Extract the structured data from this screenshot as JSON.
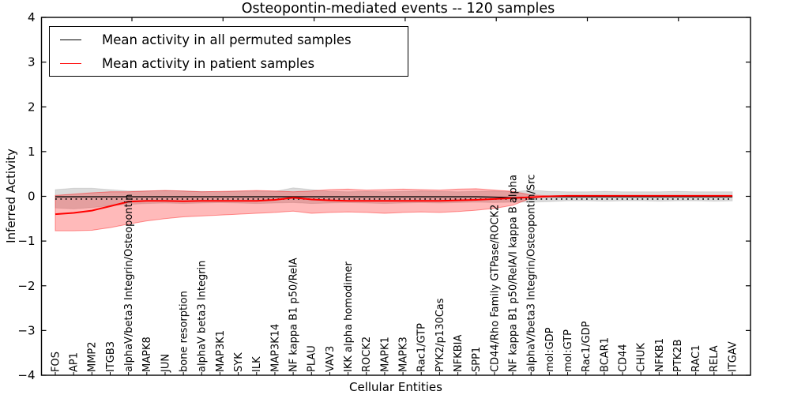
{
  "figure_title": "Osteopontin-mediated events -- 120 samples",
  "legend": {
    "items": [
      {
        "label": "Mean activity in all permuted samples",
        "color": "#000000"
      },
      {
        "label": "Mean activity in patient samples",
        "color": "#ff0000"
      }
    ]
  },
  "chart_data": {
    "type": "line",
    "title": "Osteopontin-mediated events -- 120 samples",
    "xlabel": "Cellular Entities",
    "ylabel": "Inferred Activity",
    "ylim": [
      -4,
      4
    ],
    "yticks": [
      4,
      3,
      2,
      1,
      0,
      -1,
      -2,
      -3,
      -4
    ],
    "yticklabels": [
      "4",
      "3",
      "2",
      "1",
      "0",
      "−1",
      "−2",
      "−3",
      "−4"
    ],
    "grid": false,
    "legend_position": "upper left",
    "categories": [
      "FOS",
      "AP1",
      "MMP2",
      "ITGB3",
      "alphaV/beta3 Integrin/Osteopontin",
      "MAPK8",
      "JUN",
      "bone resorption",
      "alphaV beta3 Integrin",
      "MAP3K1",
      "SYK",
      "ILK",
      "MAP3K14",
      "NF kappa B1 p50/RelA",
      "PLAU",
      "VAV3",
      "IKK alpha homodimer",
      "ROCK2",
      "MAPK1",
      "MAPK3",
      "Rac1/GTP",
      "PYK2/p130Cas",
      "NFKBIA",
      "SPP1",
      "CD44/Rho Family GTPase/ROCK2",
      "NF kappa B1 p50/RelA/I kappa B alpha",
      "alphaV/beta3 Integrin/Osteopontin/Src",
      "mol:GDP",
      "mol:GTP",
      "Rac1/GDP",
      "BCAR1",
      "CD44",
      "CHUK",
      "NFKB1",
      "PTK2B",
      "RAC1",
      "RELA",
      "ITGAV"
    ],
    "series": [
      {
        "name": "Permuted samples band",
        "type": "band",
        "fill": "rgba(0,0,0,0.14)",
        "edge": "rgba(0,0,0,0.10)",
        "upper": [
          0.15,
          0.18,
          0.18,
          0.15,
          0.12,
          0.12,
          0.13,
          0.12,
          0.11,
          0.1,
          0.11,
          0.12,
          0.11,
          0.19,
          0.15,
          0.11,
          0.1,
          0.11,
          0.1,
          0.11,
          0.12,
          0.11,
          0.1,
          0.11,
          0.12,
          0.1,
          0.14,
          0.11,
          0.1,
          0.1,
          0.11,
          0.1,
          0.1,
          0.1,
          0.11,
          0.1,
          0.1,
          0.1
        ],
        "lower": [
          -0.26,
          -0.28,
          -0.25,
          -0.21,
          -0.18,
          -0.16,
          -0.15,
          -0.16,
          -0.15,
          -0.14,
          -0.15,
          -0.16,
          -0.15,
          -0.14,
          -0.16,
          -0.15,
          -0.14,
          -0.15,
          -0.16,
          -0.15,
          -0.14,
          -0.15,
          -0.14,
          -0.13,
          -0.14,
          -0.13,
          -0.13,
          -0.12,
          -0.1,
          -0.1,
          -0.11,
          -0.1,
          -0.1,
          -0.11,
          -0.1,
          -0.1,
          -0.11,
          -0.1
        ]
      },
      {
        "name": "Patient samples band",
        "type": "band",
        "fill": "rgba(255,0,0,0.27)",
        "edge": "rgba(255,0,0,0.40)",
        "upper": [
          0.02,
          0.05,
          0.08,
          0.1,
          0.1,
          0.12,
          0.13,
          0.12,
          0.1,
          0.11,
          0.12,
          0.13,
          0.12,
          0.1,
          0.12,
          0.15,
          0.16,
          0.14,
          0.15,
          0.16,
          0.15,
          0.14,
          0.16,
          0.17,
          0.14,
          0.11,
          0.03,
          0.01,
          0.01,
          0.01,
          0.01,
          0.01,
          0.01,
          0.01,
          0.01,
          0.01,
          0.01,
          0.01
        ],
        "lower": [
          -0.77,
          -0.77,
          -0.76,
          -0.7,
          -0.62,
          -0.55,
          -0.5,
          -0.46,
          -0.44,
          -0.42,
          -0.4,
          -0.38,
          -0.36,
          -0.33,
          -0.38,
          -0.36,
          -0.35,
          -0.36,
          -0.38,
          -0.36,
          -0.35,
          -0.36,
          -0.34,
          -0.31,
          -0.27,
          -0.2,
          -0.04,
          -0.01,
          -0.01,
          -0.01,
          -0.01,
          -0.01,
          -0.01,
          -0.01,
          -0.01,
          -0.01,
          -0.01,
          -0.01
        ]
      },
      {
        "name": "Baseline",
        "type": "hline",
        "style": "dotted",
        "color": "#000000",
        "value": -0.06
      },
      {
        "name": "Mean activity in all permuted samples",
        "type": "line",
        "color": "#000000",
        "values": [
          -0.01,
          -0.01,
          -0.01,
          -0.01,
          -0.01,
          -0.01,
          -0.01,
          -0.01,
          -0.01,
          -0.01,
          -0.01,
          -0.01,
          -0.01,
          -0.01,
          -0.01,
          -0.01,
          -0.01,
          -0.01,
          -0.01,
          -0.01,
          -0.01,
          -0.01,
          -0.01,
          -0.01,
          -0.02,
          -0.03,
          -0.02,
          -0.01,
          -0.01,
          -0.01,
          -0.01,
          -0.01,
          -0.01,
          -0.01,
          -0.01,
          -0.01,
          -0.01,
          -0.01
        ]
      },
      {
        "name": "Mean activity in patient samples",
        "type": "line",
        "color": "#ff0000",
        "values": [
          -0.4,
          -0.37,
          -0.32,
          -0.22,
          -0.12,
          -0.1,
          -0.1,
          -0.11,
          -0.1,
          -0.1,
          -0.1,
          -0.1,
          -0.08,
          -0.03,
          -0.07,
          -0.09,
          -0.1,
          -0.1,
          -0.1,
          -0.1,
          -0.1,
          -0.1,
          -0.09,
          -0.08,
          -0.06,
          -0.04,
          -0.02,
          0.0,
          0.01,
          0.01,
          0.01,
          0.01,
          0.01,
          0.01,
          0.01,
          0.01,
          0.01,
          0.01
        ]
      }
    ]
  }
}
